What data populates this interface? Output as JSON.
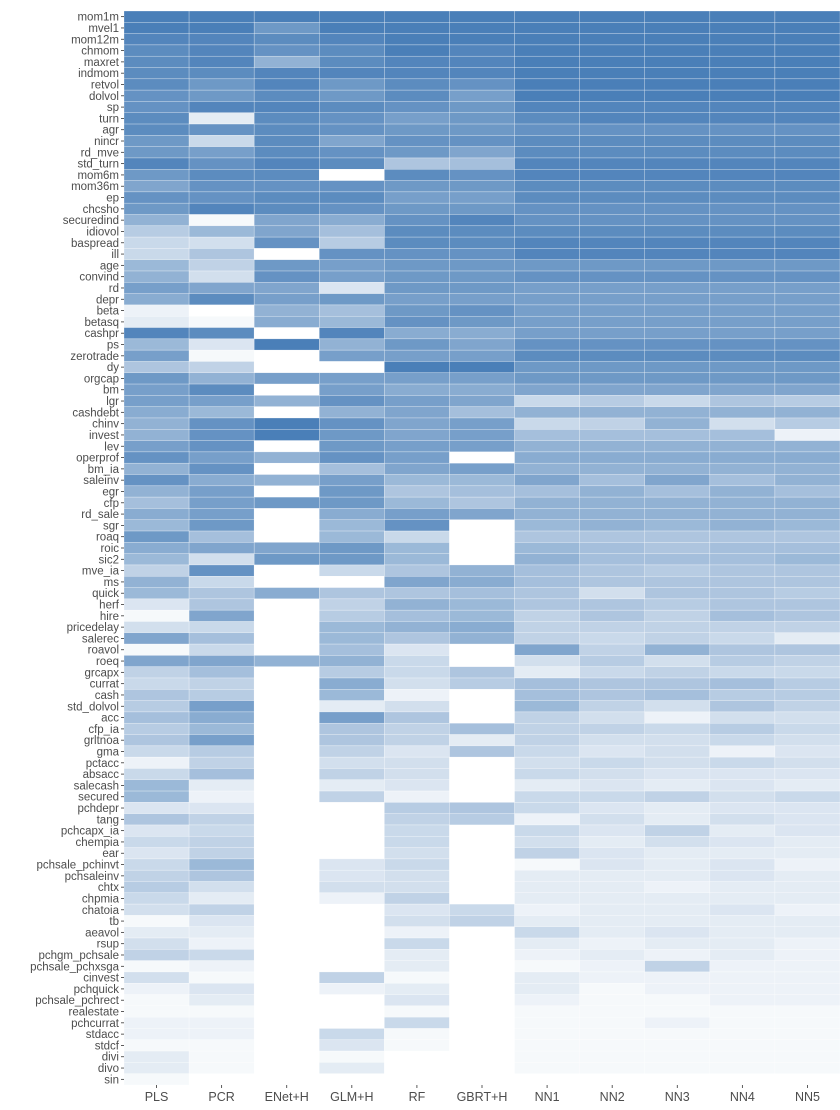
{
  "chart_data": {
    "type": "heatmap",
    "title": "",
    "xlabel": "",
    "ylabel": "",
    "value_range": [
      0,
      1
    ],
    "color_low": "#ffffff",
    "color_high": "#4a7fb8",
    "grid": true,
    "columns": [
      "PLS",
      "PCR",
      "ENet+H",
      "GLM+H",
      "RF",
      "GBRT+H",
      "NN1",
      "NN2",
      "NN3",
      "NN4",
      "NN5"
    ],
    "rows": [
      "mom1m",
      "mvel1",
      "mom12m",
      "chmom",
      "maxret",
      "indmom",
      "retvol",
      "dolvol",
      "sp",
      "turn",
      "agr",
      "nincr",
      "rd_mve",
      "std_turn",
      "mom6m",
      "mom36m",
      "ep",
      "chcsho",
      "securedind",
      "idiovol",
      "baspread",
      "ill",
      "age",
      "convind",
      "rd",
      "depr",
      "beta",
      "betasq",
      "cashpr",
      "ps",
      "zerotrade",
      "dy",
      "orgcap",
      "bm",
      "lgr",
      "cashdebt",
      "chinv",
      "invest",
      "lev",
      "operprof",
      "bm_ia",
      "saleinv",
      "egr",
      "cfp",
      "rd_sale",
      "sgr",
      "roaq",
      "roic",
      "sic2",
      "mve_ia",
      "ms",
      "quick",
      "herf",
      "hire",
      "pricedelay",
      "salerec",
      "roavol",
      "roeq",
      "grcapx",
      "currat",
      "cash",
      "std_dolvol",
      "acc",
      "cfp_ia",
      "grltnoa",
      "gma",
      "pctacc",
      "absacc",
      "salecash",
      "secured",
      "pchdepr",
      "tang",
      "pchcapx_ia",
      "chempia",
      "ear",
      "pchsale_pchinvt",
      "pchsaleinv",
      "chtx",
      "chpmia",
      "chatoia",
      "tb",
      "aeavol",
      "rsup",
      "pchgm_pchsale",
      "pchsale_pchxsga",
      "cinvest",
      "pchquick",
      "pchsale_pchrect",
      "realestate",
      "pchcurrat",
      "stdacc",
      "stdcf",
      "divi",
      "divo",
      "sin"
    ],
    "values": [
      [
        1.0,
        1.0,
        1.0,
        1.0,
        1.0,
        1.0,
        1.0,
        1.0,
        1.0,
        1.0,
        1.0
      ],
      [
        1.0,
        1.0,
        0.8,
        1.0,
        1.0,
        1.0,
        1.0,
        1.0,
        1.0,
        1.0,
        1.0
      ],
      [
        0.95,
        0.95,
        0.9,
        0.95,
        1.0,
        1.0,
        1.0,
        1.0,
        1.0,
        1.0,
        1.0
      ],
      [
        0.9,
        0.95,
        0.85,
        0.9,
        1.0,
        0.95,
        1.0,
        1.0,
        1.0,
        1.0,
        1.0
      ],
      [
        0.9,
        0.95,
        0.6,
        0.9,
        0.95,
        0.95,
        1.0,
        1.0,
        1.0,
        1.0,
        1.0
      ],
      [
        0.9,
        0.9,
        0.95,
        0.95,
        0.95,
        0.95,
        1.0,
        1.0,
        1.0,
        1.0,
        1.0
      ],
      [
        0.9,
        0.8,
        0.95,
        0.8,
        0.9,
        0.85,
        1.0,
        1.0,
        1.0,
        1.0,
        1.0
      ],
      [
        0.85,
        0.8,
        0.9,
        0.8,
        0.9,
        0.75,
        1.0,
        1.0,
        1.0,
        1.0,
        1.0
      ],
      [
        0.85,
        0.95,
        0.95,
        0.9,
        0.85,
        0.8,
        0.95,
        0.95,
        0.95,
        0.95,
        0.95
      ],
      [
        0.9,
        0.15,
        0.9,
        0.85,
        0.75,
        0.8,
        0.9,
        0.95,
        0.95,
        0.95,
        0.95
      ],
      [
        0.9,
        0.85,
        0.9,
        0.85,
        0.8,
        0.8,
        0.85,
        0.85,
        0.85,
        0.85,
        0.85
      ],
      [
        0.8,
        0.3,
        0.9,
        0.7,
        0.85,
        0.85,
        0.9,
        0.9,
        0.9,
        0.9,
        0.9
      ],
      [
        0.8,
        0.75,
        0.9,
        0.85,
        0.8,
        0.7,
        0.9,
        0.9,
        0.9,
        0.9,
        0.9
      ],
      [
        0.95,
        0.85,
        0.95,
        0.9,
        0.45,
        0.5,
        0.95,
        0.95,
        0.95,
        0.95,
        0.95
      ],
      [
        0.8,
        0.9,
        0.9,
        0.0,
        0.9,
        0.85,
        0.95,
        0.95,
        0.95,
        0.95,
        0.95
      ],
      [
        0.7,
        0.85,
        0.85,
        0.85,
        0.8,
        0.8,
        0.9,
        0.9,
        0.9,
        0.9,
        0.9
      ],
      [
        0.85,
        0.85,
        0.9,
        0.9,
        0.75,
        0.75,
        0.9,
        0.9,
        0.9,
        0.9,
        0.9
      ],
      [
        0.8,
        0.95,
        0.9,
        0.85,
        0.8,
        0.8,
        0.85,
        0.85,
        0.85,
        0.85,
        0.85
      ],
      [
        0.6,
        0.05,
        0.7,
        0.65,
        0.85,
        0.95,
        0.85,
        0.85,
        0.85,
        0.85,
        0.85
      ],
      [
        0.4,
        0.55,
        0.7,
        0.5,
        0.9,
        0.9,
        0.9,
        0.9,
        0.9,
        0.9,
        0.9
      ],
      [
        0.3,
        0.25,
        0.85,
        0.4,
        0.9,
        0.9,
        0.95,
        0.95,
        0.95,
        0.95,
        0.95
      ],
      [
        0.3,
        0.45,
        0.0,
        0.85,
        0.85,
        0.85,
        0.95,
        0.95,
        0.95,
        0.95,
        0.95
      ],
      [
        0.55,
        0.35,
        0.8,
        0.75,
        0.8,
        0.8,
        0.8,
        0.8,
        0.8,
        0.8,
        0.8
      ],
      [
        0.6,
        0.25,
        0.85,
        0.75,
        0.8,
        0.8,
        0.85,
        0.85,
        0.85,
        0.85,
        0.85
      ],
      [
        0.75,
        0.7,
        0.7,
        0.2,
        0.8,
        0.8,
        0.75,
        0.75,
        0.75,
        0.75,
        0.75
      ],
      [
        0.65,
        0.9,
        0.75,
        0.8,
        0.75,
        0.75,
        0.75,
        0.75,
        0.75,
        0.75,
        0.75
      ],
      [
        0.1,
        0.0,
        0.6,
        0.5,
        0.8,
        0.85,
        0.75,
        0.75,
        0.75,
        0.75,
        0.75
      ],
      [
        0.15,
        0.05,
        0.65,
        0.55,
        0.85,
        0.8,
        0.75,
        0.75,
        0.75,
        0.75,
        0.75
      ],
      [
        0.95,
        0.9,
        0.0,
        0.95,
        0.65,
        0.65,
        0.75,
        0.75,
        0.75,
        0.75,
        0.75
      ],
      [
        0.55,
        0.2,
        1.0,
        0.6,
        0.8,
        0.7,
        0.85,
        0.85,
        0.85,
        0.85,
        0.85
      ],
      [
        0.75,
        0.05,
        0.0,
        0.75,
        0.75,
        0.75,
        0.9,
        0.9,
        0.9,
        0.9,
        0.9
      ],
      [
        0.45,
        0.35,
        0.0,
        0.0,
        1.0,
        1.0,
        0.8,
        0.8,
        0.8,
        0.8,
        0.8
      ],
      [
        0.8,
        0.6,
        0.75,
        0.75,
        0.75,
        0.75,
        0.8,
        0.8,
        0.8,
        0.8,
        0.8
      ],
      [
        0.75,
        0.9,
        0.0,
        0.75,
        0.65,
        0.65,
        0.7,
        0.7,
        0.7,
        0.7,
        0.7
      ],
      [
        0.75,
        0.75,
        0.6,
        0.85,
        0.75,
        0.7,
        0.3,
        0.4,
        0.3,
        0.45,
        0.4
      ],
      [
        0.65,
        0.55,
        0.0,
        0.6,
        0.7,
        0.5,
        0.6,
        0.6,
        0.6,
        0.6,
        0.6
      ],
      [
        0.6,
        0.85,
        1.0,
        0.85,
        0.7,
        0.75,
        0.3,
        0.35,
        0.6,
        0.25,
        0.4
      ],
      [
        0.6,
        0.85,
        1.0,
        0.8,
        0.7,
        0.75,
        0.5,
        0.5,
        0.5,
        0.5,
        0.1
      ],
      [
        0.75,
        0.85,
        0.0,
        0.8,
        0.75,
        0.75,
        0.6,
        0.6,
        0.6,
        0.6,
        0.6
      ],
      [
        0.85,
        0.75,
        0.6,
        0.85,
        0.75,
        0.0,
        0.65,
        0.65,
        0.65,
        0.65,
        0.65
      ],
      [
        0.6,
        0.85,
        0.0,
        0.5,
        0.7,
        0.75,
        0.6,
        0.6,
        0.6,
        0.6,
        0.6
      ],
      [
        0.85,
        0.65,
        0.6,
        0.75,
        0.55,
        0.55,
        0.7,
        0.5,
        0.7,
        0.5,
        0.6
      ],
      [
        0.6,
        0.75,
        0.0,
        0.8,
        0.45,
        0.5,
        0.5,
        0.6,
        0.5,
        0.6,
        0.5
      ],
      [
        0.5,
        0.75,
        0.8,
        0.8,
        0.55,
        0.45,
        0.6,
        0.6,
        0.6,
        0.6,
        0.6
      ],
      [
        0.65,
        0.75,
        0.0,
        0.65,
        0.75,
        0.7,
        0.6,
        0.6,
        0.6,
        0.6,
        0.6
      ],
      [
        0.55,
        0.8,
        0.0,
        0.55,
        0.85,
        0.0,
        0.55,
        0.6,
        0.55,
        0.6,
        0.55
      ],
      [
        0.8,
        0.5,
        0.0,
        0.55,
        0.3,
        0.0,
        0.45,
        0.45,
        0.45,
        0.45,
        0.45
      ],
      [
        0.65,
        0.7,
        0.7,
        0.8,
        0.55,
        0.0,
        0.55,
        0.5,
        0.45,
        0.5,
        0.5
      ],
      [
        0.55,
        0.25,
        0.8,
        0.8,
        0.55,
        0.0,
        0.6,
        0.5,
        0.5,
        0.5,
        0.55
      ],
      [
        0.35,
        0.85,
        0.0,
        0.3,
        0.45,
        0.6,
        0.5,
        0.45,
        0.4,
        0.45,
        0.45
      ],
      [
        0.6,
        0.3,
        0.0,
        0.0,
        0.7,
        0.65,
        0.5,
        0.45,
        0.45,
        0.45,
        0.45
      ],
      [
        0.55,
        0.45,
        0.65,
        0.45,
        0.45,
        0.5,
        0.45,
        0.25,
        0.45,
        0.45,
        0.4
      ],
      [
        0.2,
        0.45,
        0.0,
        0.35,
        0.6,
        0.55,
        0.45,
        0.45,
        0.4,
        0.45,
        0.45
      ],
      [
        0.05,
        0.7,
        0.0,
        0.4,
        0.5,
        0.55,
        0.35,
        0.45,
        0.35,
        0.5,
        0.45
      ],
      [
        0.25,
        0.3,
        0.0,
        0.55,
        0.6,
        0.65,
        0.35,
        0.35,
        0.35,
        0.35,
        0.35
      ],
      [
        0.7,
        0.5,
        0.0,
        0.55,
        0.45,
        0.6,
        0.35,
        0.3,
        0.35,
        0.3,
        0.15
      ],
      [
        0.05,
        0.3,
        0.0,
        0.5,
        0.2,
        0.0,
        0.7,
        0.35,
        0.6,
        0.45,
        0.45
      ],
      [
        0.7,
        0.7,
        0.6,
        0.6,
        0.3,
        0.0,
        0.25,
        0.4,
        0.25,
        0.4,
        0.35
      ],
      [
        0.35,
        0.5,
        0.0,
        0.4,
        0.3,
        0.45,
        0.15,
        0.3,
        0.35,
        0.3,
        0.3
      ],
      [
        0.3,
        0.35,
        0.0,
        0.65,
        0.25,
        0.4,
        0.5,
        0.45,
        0.45,
        0.5,
        0.4
      ],
      [
        0.45,
        0.4,
        0.0,
        0.55,
        0.1,
        0.0,
        0.5,
        0.45,
        0.5,
        0.4,
        0.4
      ],
      [
        0.4,
        0.75,
        0.0,
        0.15,
        0.25,
        0.0,
        0.55,
        0.35,
        0.25,
        0.45,
        0.35
      ],
      [
        0.5,
        0.65,
        0.0,
        0.75,
        0.45,
        0.0,
        0.35,
        0.25,
        0.1,
        0.25,
        0.25
      ],
      [
        0.4,
        0.55,
        0.0,
        0.45,
        0.35,
        0.5,
        0.35,
        0.35,
        0.3,
        0.4,
        0.3
      ],
      [
        0.45,
        0.75,
        0.0,
        0.45,
        0.35,
        0.15,
        0.35,
        0.25,
        0.25,
        0.3,
        0.25
      ],
      [
        0.3,
        0.4,
        0.0,
        0.35,
        0.2,
        0.45,
        0.3,
        0.2,
        0.25,
        0.1,
        0.2
      ],
      [
        0.1,
        0.35,
        0.0,
        0.25,
        0.25,
        0.0,
        0.25,
        0.3,
        0.25,
        0.3,
        0.25
      ],
      [
        0.3,
        0.5,
        0.0,
        0.35,
        0.25,
        0.0,
        0.3,
        0.25,
        0.2,
        0.2,
        0.2
      ],
      [
        0.55,
        0.15,
        0.0,
        0.15,
        0.2,
        0.0,
        0.15,
        0.2,
        0.15,
        0.2,
        0.15
      ],
      [
        0.55,
        0.1,
        0.0,
        0.35,
        0.1,
        0.0,
        0.3,
        0.3,
        0.35,
        0.25,
        0.3
      ],
      [
        0.2,
        0.2,
        0.0,
        0.0,
        0.4,
        0.45,
        0.3,
        0.2,
        0.15,
        0.2,
        0.2
      ],
      [
        0.45,
        0.35,
        0.0,
        0.0,
        0.35,
        0.4,
        0.1,
        0.25,
        0.15,
        0.25,
        0.2
      ],
      [
        0.2,
        0.3,
        0.0,
        0.0,
        0.3,
        0.0,
        0.3,
        0.2,
        0.35,
        0.15,
        0.2
      ],
      [
        0.3,
        0.35,
        0.0,
        0.0,
        0.3,
        0.0,
        0.25,
        0.15,
        0.25,
        0.2,
        0.15
      ],
      [
        0.2,
        0.35,
        0.0,
        0.0,
        0.25,
        0.0,
        0.35,
        0.2,
        0.15,
        0.15,
        0.15
      ],
      [
        0.3,
        0.55,
        0.0,
        0.2,
        0.3,
        0.0,
        0.05,
        0.2,
        0.15,
        0.2,
        0.1
      ],
      [
        0.35,
        0.45,
        0.0,
        0.2,
        0.25,
        0.0,
        0.15,
        0.15,
        0.15,
        0.2,
        0.15
      ],
      [
        0.4,
        0.25,
        0.0,
        0.25,
        0.25,
        0.0,
        0.15,
        0.15,
        0.1,
        0.15,
        0.15
      ],
      [
        0.3,
        0.15,
        0.0,
        0.1,
        0.35,
        0.0,
        0.15,
        0.15,
        0.15,
        0.15,
        0.15
      ],
      [
        0.25,
        0.35,
        0.0,
        0.0,
        0.2,
        0.3,
        0.1,
        0.15,
        0.15,
        0.2,
        0.1
      ],
      [
        0.05,
        0.2,
        0.0,
        0.0,
        0.25,
        0.35,
        0.15,
        0.15,
        0.15,
        0.15,
        0.15
      ],
      [
        0.15,
        0.15,
        0.0,
        0.0,
        0.1,
        0.0,
        0.3,
        0.15,
        0.2,
        0.15,
        0.15
      ],
      [
        0.25,
        0.1,
        0.0,
        0.0,
        0.3,
        0.0,
        0.15,
        0.1,
        0.15,
        0.15,
        0.1
      ],
      [
        0.35,
        0.3,
        0.0,
        0.0,
        0.15,
        0.0,
        0.1,
        0.15,
        0.1,
        0.15,
        0.1
      ],
      [
        0.05,
        0.1,
        0.0,
        0.0,
        0.15,
        0.0,
        0.05,
        0.1,
        0.35,
        0.1,
        0.1
      ],
      [
        0.25,
        0.05,
        0.0,
        0.35,
        0.05,
        0.0,
        0.15,
        0.1,
        0.1,
        0.1,
        0.1
      ],
      [
        0.1,
        0.2,
        0.0,
        0.1,
        0.15,
        0.0,
        0.15,
        0.05,
        0.1,
        0.1,
        0.1
      ],
      [
        0.05,
        0.15,
        0.0,
        0.0,
        0.2,
        0.0,
        0.1,
        0.05,
        0.05,
        0.1,
        0.1
      ],
      [
        0.05,
        0.05,
        0.0,
        0.0,
        0.05,
        0.0,
        0.05,
        0.05,
        0.05,
        0.05,
        0.05
      ],
      [
        0.1,
        0.1,
        0.0,
        0.0,
        0.3,
        0.0,
        0.05,
        0.05,
        0.1,
        0.05,
        0.05
      ],
      [
        0.1,
        0.1,
        0.0,
        0.3,
        0.05,
        0.0,
        0.05,
        0.05,
        0.05,
        0.05,
        0.05
      ],
      [
        0.05,
        0.05,
        0.0,
        0.2,
        0.05,
        0.0,
        0.05,
        0.05,
        0.05,
        0.05,
        0.05
      ],
      [
        0.15,
        0.05,
        0.0,
        0.05,
        0.0,
        0.0,
        0.05,
        0.05,
        0.05,
        0.05,
        0.05
      ],
      [
        0.15,
        0.05,
        0.0,
        0.15,
        0.0,
        0.0,
        0.05,
        0.05,
        0.05,
        0.05,
        0.05
      ],
      [
        0.05,
        0.0,
        0.0,
        0.0,
        0.0,
        0.0,
        0.0,
        0.0,
        0.0,
        0.0,
        0.0
      ]
    ]
  }
}
